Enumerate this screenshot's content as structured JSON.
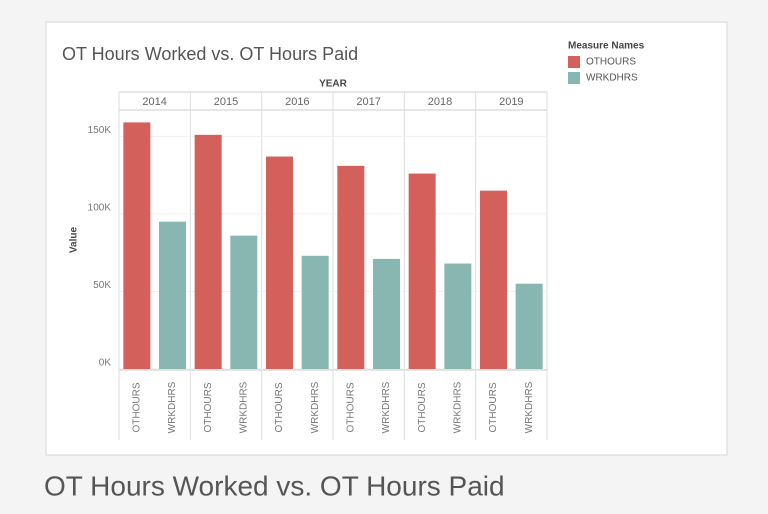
{
  "chart_data": {
    "type": "bar",
    "title": "OT Hours Worked vs. OT Hours Paid",
    "caption": "OT Hours Worked vs. OT Hours Paid",
    "column_header": "YEAR",
    "y_label": "Value",
    "legend_title": "Measure Names",
    "legend_position": "top-right",
    "grid": true,
    "categories": [
      "2014",
      "2015",
      "2016",
      "2017",
      "2018",
      "2019"
    ],
    "series": [
      {
        "name": "OTHOURS",
        "color": "#d4605b",
        "values": [
          159000,
          151000,
          137000,
          131000,
          126000,
          115000
        ]
      },
      {
        "name": "WRKDHRS",
        "color": "#88b7b1",
        "values": [
          95000,
          86000,
          73000,
          71000,
          68000,
          55000
        ]
      }
    ],
    "ylim": [
      0,
      167000
    ],
    "yticks": [
      {
        "value": 0,
        "label": "0K"
      },
      {
        "value": 50000,
        "label": "50K"
      },
      {
        "value": 100000,
        "label": "100K"
      },
      {
        "value": 150000,
        "label": "150K"
      }
    ]
  }
}
